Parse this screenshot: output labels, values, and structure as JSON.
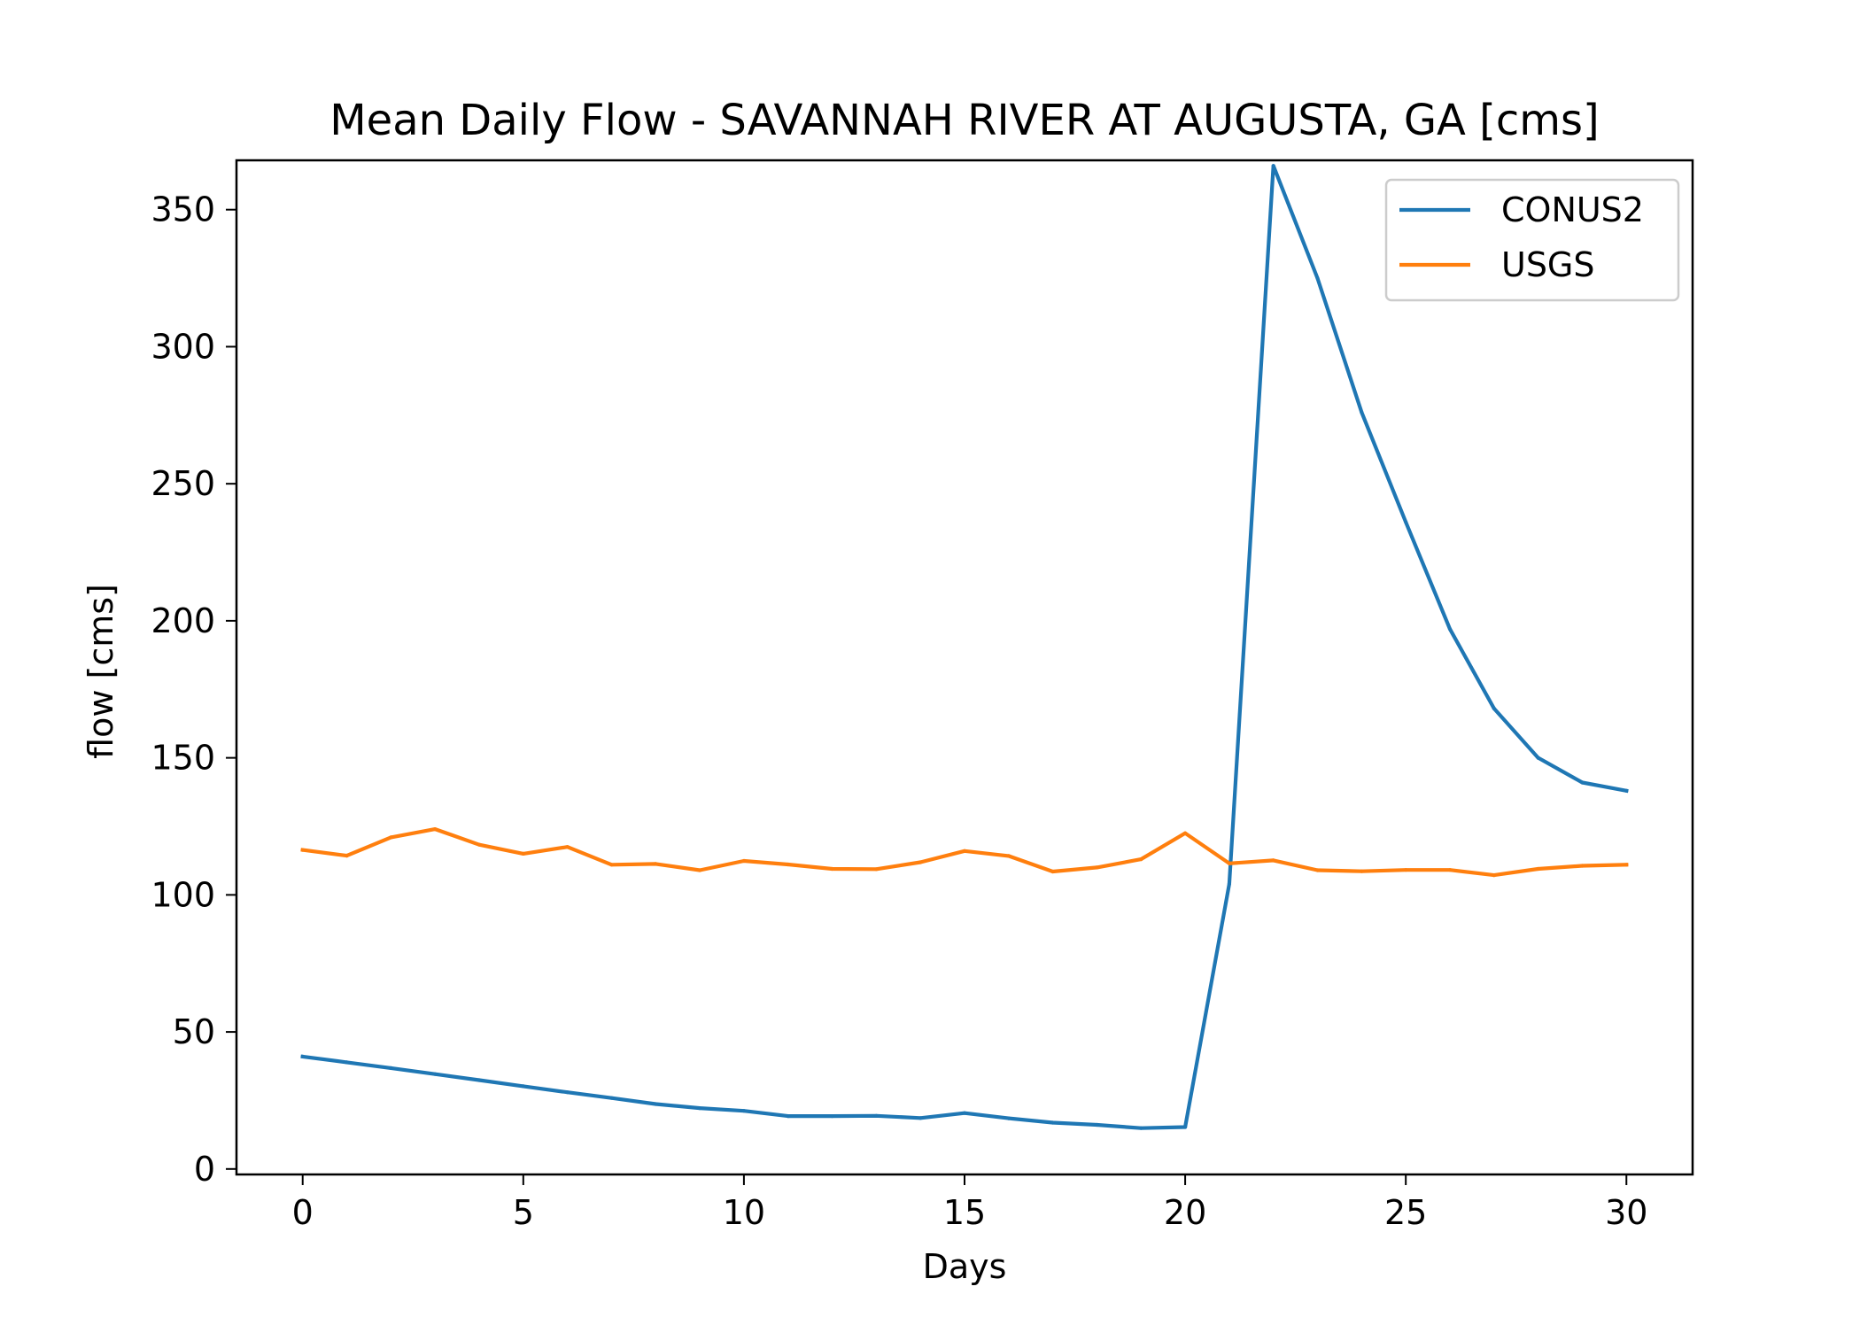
{
  "chart_data": {
    "type": "line",
    "title": "Mean Daily Flow - SAVANNAH RIVER AT AUGUSTA, GA [cms]",
    "xlabel": "Days",
    "ylabel": "flow [cms]",
    "xlim": [
      -1.5,
      31.5
    ],
    "ylim": [
      -2,
      368
    ],
    "xticks": [
      0,
      5,
      10,
      15,
      20,
      25,
      30
    ],
    "yticks": [
      0,
      50,
      100,
      150,
      200,
      250,
      300,
      350
    ],
    "grid": false,
    "legend_position": "upper right",
    "x": [
      0,
      1,
      2,
      3,
      4,
      5,
      6,
      7,
      8,
      9,
      10,
      11,
      12,
      13,
      14,
      15,
      16,
      17,
      18,
      19,
      20,
      21,
      22,
      23,
      24,
      25,
      26,
      27,
      28,
      29,
      30
    ],
    "series": [
      {
        "name": "CONUS2",
        "color": "#1f77b4",
        "values": [
          41,
          38.9,
          36.8,
          34.6,
          32.4,
          30.2,
          28,
          25.9,
          23.7,
          22.2,
          21.2,
          19.3,
          19.3,
          19.4,
          18.6,
          20.4,
          18.5,
          16.9,
          16.1,
          14.9,
          15.3,
          104,
          366,
          325,
          276,
          236,
          197,
          168,
          150,
          141,
          138
        ]
      },
      {
        "name": "USGS",
        "color": "#ff7f0e",
        "values": [
          116.4,
          114.3,
          121,
          124,
          118.3,
          115,
          117.5,
          111,
          111.3,
          109,
          112.4,
          111.1,
          109.5,
          109.4,
          111.9,
          116,
          114.2,
          108.5,
          110,
          113,
          122.5,
          111.5,
          112.6,
          109,
          108.6,
          109.1,
          109.1,
          107.2,
          109.5,
          110.6,
          111
        ]
      }
    ]
  }
}
